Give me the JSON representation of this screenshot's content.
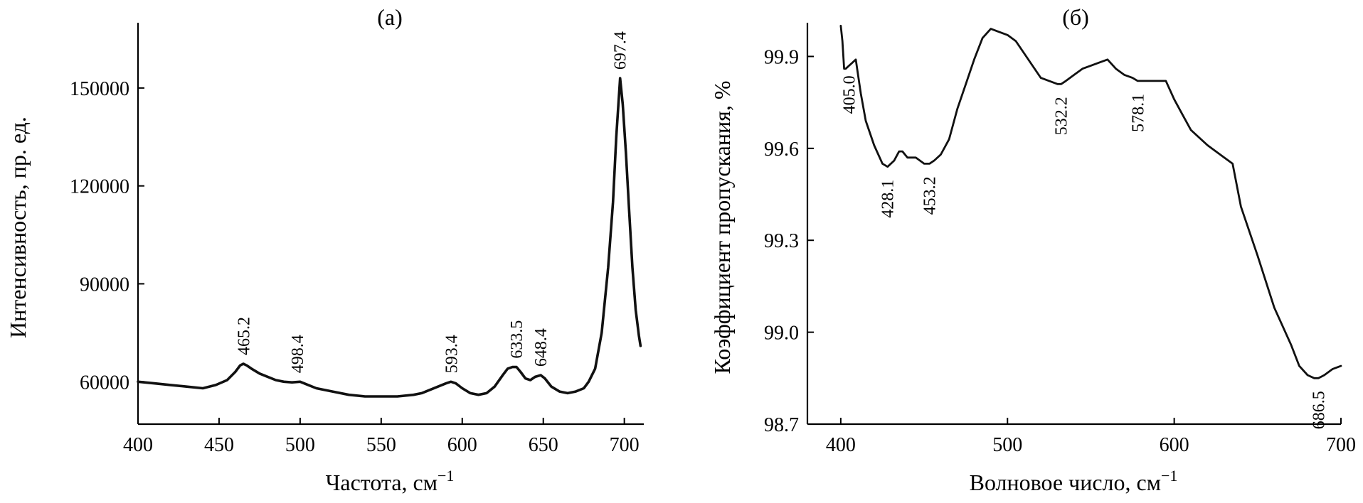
{
  "chart_data": [
    {
      "type": "line",
      "panel_label": "(а)",
      "xlabel": "Частота, см",
      "xlabel_sup": "−1",
      "ylabel": "Интенсивность, пр. ед.",
      "xlim": [
        400,
        712
      ],
      "ylim": [
        47000,
        170000
      ],
      "xticks": [
        400,
        450,
        500,
        550,
        600,
        650,
        700
      ],
      "yticks": [
        60000,
        90000,
        120000,
        150000
      ],
      "grid": false,
      "series": [
        {
          "x": [
            400,
            410,
            420,
            430,
            440,
            448,
            455,
            460,
            463,
            465,
            467,
            470,
            475,
            480,
            485,
            490,
            495,
            500,
            505,
            510,
            520,
            530,
            540,
            550,
            560,
            570,
            575,
            580,
            585,
            590,
            593,
            596,
            600,
            605,
            610,
            615,
            620,
            625,
            628,
            631,
            633.5,
            636,
            639,
            642,
            645,
            648.4,
            651,
            655,
            660,
            665,
            670,
            675,
            678,
            682,
            686,
            690,
            693,
            695,
            697.4,
            699,
            701,
            703,
            705,
            707,
            709,
            710
          ],
          "y": [
            60000,
            59500,
            59000,
            58500,
            58000,
            59000,
            60500,
            63000,
            65000,
            65500,
            65000,
            64000,
            62500,
            61500,
            60500,
            60000,
            59800,
            60000,
            59000,
            58000,
            57000,
            56000,
            55500,
            55500,
            55500,
            56000,
            56500,
            57500,
            58500,
            59500,
            60000,
            59500,
            58000,
            56500,
            56000,
            56500,
            58500,
            62000,
            64000,
            64500,
            64500,
            63000,
            61000,
            60500,
            61500,
            62000,
            61000,
            58500,
            57000,
            56500,
            57000,
            58000,
            60000,
            64000,
            75000,
            95000,
            115000,
            135000,
            153000,
            145000,
            130000,
            112000,
            95000,
            82000,
            74000,
            71000
          ]
        }
      ],
      "annotations": [
        {
          "text": "465.2",
          "x": 465.2,
          "y": 65500
        },
        {
          "text": "498.4",
          "x": 498.4,
          "y": 60000
        },
        {
          "text": "593.4",
          "x": 593.4,
          "y": 60000
        },
        {
          "text": "633.5",
          "x": 633.5,
          "y": 64500
        },
        {
          "text": "648.4",
          "x": 648.4,
          "y": 62000
        },
        {
          "text": "697.4",
          "x": 697.4,
          "y": 153000
        }
      ]
    },
    {
      "type": "line",
      "panel_label": "(б)",
      "xlabel": "Волновое число, см",
      "xlabel_sup": "−1",
      "ylabel": "Коэффициент пропускания, %",
      "xlim": [
        380,
        700
      ],
      "ylim": [
        98.7,
        100.01
      ],
      "xticks": [
        400,
        500,
        600,
        700
      ],
      "yticks": [
        98.7,
        99.0,
        99.3,
        99.6,
        99.9
      ],
      "ytick_labels": [
        "98.7",
        "99.0",
        "99.3",
        "99.6",
        "99.9"
      ],
      "grid": false,
      "series": [
        {
          "x": [
            400,
            401,
            402,
            403,
            405,
            407,
            409,
            412,
            415,
            420,
            425,
            428.1,
            432,
            435,
            437,
            440,
            445,
            450,
            453.2,
            456,
            460,
            465,
            470,
            475,
            480,
            485,
            490,
            495,
            500,
            505,
            510,
            515,
            520,
            525,
            530,
            532.2,
            535,
            540,
            545,
            550,
            555,
            560,
            565,
            570,
            575,
            578.1,
            585,
            590,
            595,
            600,
            605,
            610,
            620,
            630,
            635,
            640,
            650,
            660,
            670,
            675,
            680,
            684,
            686.5,
            690,
            695,
            700
          ],
          "y": [
            100.0,
            99.95,
            99.86,
            99.86,
            99.87,
            99.88,
            99.89,
            99.78,
            99.69,
            99.61,
            99.55,
            99.54,
            99.56,
            99.59,
            99.59,
            99.57,
            99.57,
            99.55,
            99.55,
            99.56,
            99.58,
            99.63,
            99.73,
            99.81,
            99.89,
            99.96,
            99.99,
            99.98,
            99.97,
            99.95,
            99.91,
            99.87,
            99.83,
            99.82,
            99.81,
            99.81,
            99.82,
            99.84,
            99.86,
            99.87,
            99.88,
            99.89,
            99.86,
            99.84,
            99.83,
            99.82,
            99.82,
            99.82,
            99.82,
            99.76,
            99.71,
            99.66,
            99.61,
            99.57,
            99.55,
            99.41,
            99.25,
            99.08,
            98.96,
            98.89,
            98.86,
            98.85,
            98.85,
            98.86,
            98.88,
            98.89
          ]
        }
      ],
      "annotations": [
        {
          "text": "405.0",
          "x": 405.0,
          "y": 99.87
        },
        {
          "text": "428.1",
          "x": 428.1,
          "y": 99.54
        },
        {
          "text": "453.2",
          "x": 453.2,
          "y": 99.55
        },
        {
          "text": "532.2",
          "x": 532.2,
          "y": 99.81
        },
        {
          "text": "578.1",
          "x": 578.1,
          "y": 99.82
        },
        {
          "text": "686.5",
          "x": 686.5,
          "y": 98.85
        }
      ]
    }
  ]
}
